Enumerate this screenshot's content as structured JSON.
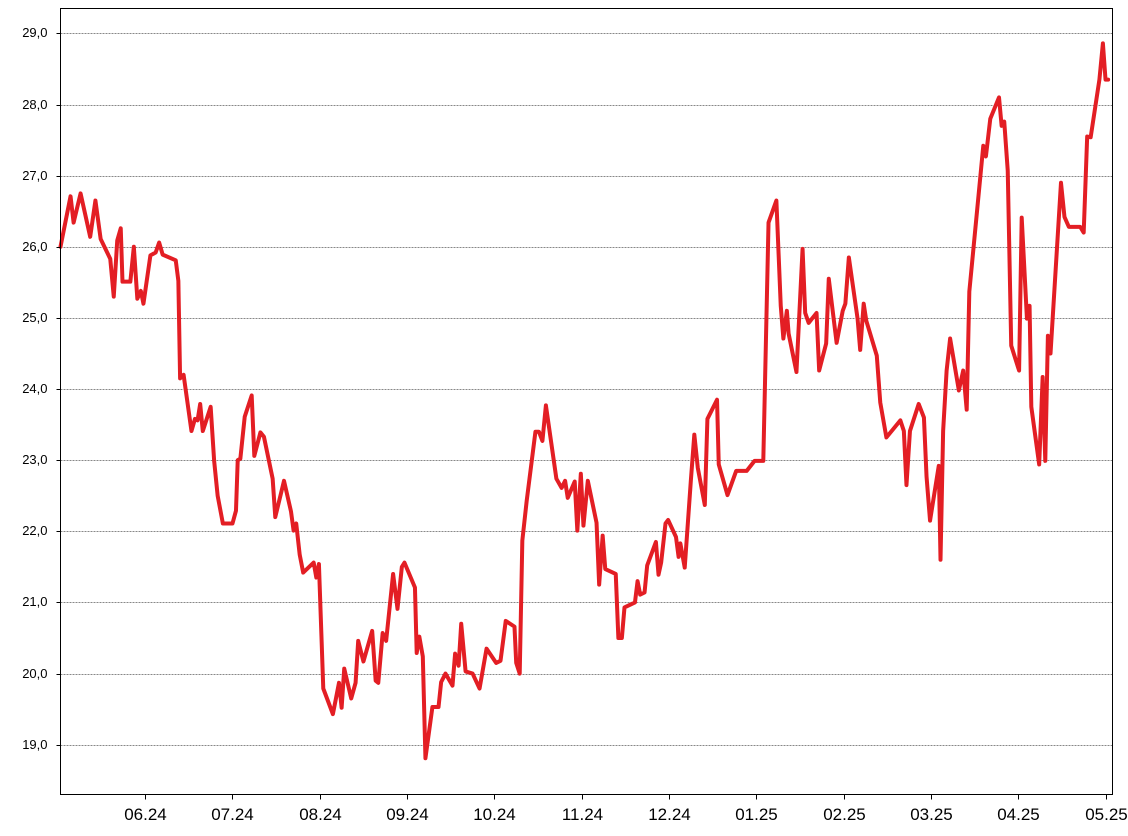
{
  "chart_data": {
    "type": "line",
    "x": [
      5.03,
      5.145,
      5.18,
      5.26,
      5.37,
      5.43,
      5.49,
      5.6,
      5.64,
      5.68,
      5.72,
      5.74,
      5.83,
      5.87,
      5.91,
      5.95,
      5.98,
      6.06,
      6.12,
      6.16,
      6.2,
      6.35,
      6.38,
      6.4,
      6.44,
      6.53,
      6.57,
      6.6,
      6.63,
      6.66,
      6.75,
      6.79,
      6.83,
      6.89,
      7.0,
      7.04,
      7.06,
      7.09,
      7.14,
      7.22,
      7.25,
      7.32,
      7.36,
      7.46,
      7.49,
      7.59,
      7.67,
      7.7,
      7.73,
      7.77,
      7.81,
      7.93,
      7.96,
      7.99,
      8.04,
      8.15,
      8.22,
      8.25,
      8.28,
      8.36,
      8.41,
      8.44,
      8.5,
      8.6,
      8.64,
      8.67,
      8.72,
      8.76,
      8.84,
      8.89,
      8.94,
      8.97,
      9.09,
      9.11,
      9.14,
      9.18,
      9.21,
      9.29,
      9.36,
      9.39,
      9.44,
      9.52,
      9.55,
      9.59,
      9.62,
      9.67,
      9.75,
      9.83,
      9.91,
      10.02,
      10.07,
      10.13,
      10.23,
      10.25,
      10.29,
      10.32,
      10.37,
      10.47,
      10.51,
      10.55,
      10.59,
      10.71,
      10.77,
      10.81,
      10.84,
      10.92,
      10.95,
      10.99,
      11.02,
      11.07,
      11.17,
      11.2,
      11.24,
      11.27,
      11.39,
      11.42,
      11.46,
      11.49,
      11.61,
      11.64,
      11.67,
      11.72,
      11.75,
      11.85,
      11.88,
      11.91,
      11.96,
      11.99,
      12.08,
      12.11,
      12.13,
      12.18,
      12.25,
      12.29,
      12.33,
      12.41,
      12.44,
      12.55,
      12.57,
      12.67,
      12.77,
      12.89,
      12.98,
      13.08,
      13.14,
      13.23,
      13.28,
      13.31,
      13.35,
      13.37,
      13.46,
      13.53,
      13.56,
      13.6,
      13.69,
      13.72,
      13.8,
      13.83,
      13.92,
      13.99,
      14.02,
      14.06,
      14.16,
      14.19,
      14.23,
      14.26,
      14.38,
      14.42,
      14.49,
      14.65,
      14.69,
      14.72,
      14.76,
      14.86,
      14.92,
      14.95,
      14.99,
      15.09,
      15.11,
      15.14,
      15.18,
      15.22,
      15.32,
      15.37,
      15.41,
      15.44,
      15.6,
      15.63,
      15.68,
      15.78,
      15.81,
      15.84,
      15.88,
      15.92,
      16.01,
      16.04,
      16.1,
      16.13,
      16.15,
      16.24,
      16.28,
      16.31,
      16.34,
      16.37,
      16.49,
      16.53,
      16.58,
      16.71,
      16.75,
      16.79,
      16.83,
      16.93,
      16.97,
      17.0,
      17.03
    ],
    "series": [
      {
        "color": "#e31e24",
        "values": [
          26.0,
          26.71,
          26.34,
          26.75,
          26.14,
          26.65,
          26.11,
          25.83,
          25.3,
          26.09,
          26.26,
          25.51,
          25.51,
          26.0,
          25.27,
          25.38,
          25.2,
          25.88,
          25.92,
          26.06,
          25.89,
          25.81,
          25.52,
          24.15,
          24.2,
          23.41,
          23.58,
          23.56,
          23.79,
          23.41,
          23.75,
          22.99,
          22.5,
          22.11,
          22.11,
          22.29,
          23.0,
          23.02,
          23.61,
          23.91,
          23.06,
          23.39,
          23.33,
          22.74,
          22.2,
          22.71,
          22.28,
          22.01,
          22.11,
          21.67,
          21.42,
          21.56,
          21.35,
          21.54,
          19.79,
          19.43,
          19.87,
          19.52,
          20.07,
          19.65,
          19.87,
          20.46,
          20.17,
          20.6,
          19.9,
          19.87,
          20.57,
          20.46,
          21.4,
          20.91,
          21.5,
          21.56,
          21.21,
          20.29,
          20.52,
          20.24,
          18.81,
          19.53,
          19.53,
          19.88,
          20.0,
          19.83,
          20.28,
          20.11,
          20.7,
          20.03,
          20.0,
          19.79,
          20.35,
          20.15,
          20.18,
          20.74,
          20.66,
          20.15,
          20.0,
          21.87,
          22.43,
          23.4,
          23.4,
          23.27,
          23.77,
          22.74,
          22.61,
          22.71,
          22.47,
          22.7,
          22.01,
          22.81,
          22.08,
          22.71,
          22.12,
          21.25,
          21.94,
          21.47,
          21.4,
          20.5,
          20.5,
          20.93,
          21.0,
          21.3,
          21.11,
          21.14,
          21.52,
          21.85,
          21.39,
          21.56,
          22.11,
          22.16,
          21.92,
          21.64,
          21.83,
          21.49,
          22.71,
          23.36,
          22.89,
          22.37,
          23.58,
          23.85,
          22.94,
          22.51,
          22.85,
          22.85,
          22.99,
          22.99,
          26.34,
          26.65,
          25.17,
          24.71,
          25.1,
          24.78,
          24.24,
          25.97,
          25.07,
          24.93,
          25.07,
          24.26,
          24.64,
          25.55,
          24.65,
          25.1,
          25.2,
          25.85,
          24.99,
          24.55,
          25.2,
          24.96,
          24.47,
          23.81,
          23.32,
          23.56,
          23.41,
          22.65,
          23.41,
          23.79,
          23.6,
          22.77,
          22.15,
          22.92,
          21.6,
          23.41,
          24.26,
          24.71,
          23.98,
          24.26,
          23.71,
          25.37,
          27.42,
          27.27,
          27.8,
          28.1,
          27.7,
          27.76,
          27.07,
          24.61,
          24.26,
          26.41,
          24.99,
          25.17,
          23.75,
          22.94,
          24.17,
          22.99,
          24.75,
          24.5,
          26.9,
          26.42,
          26.28,
          26.28,
          26.2,
          27.55,
          27.54,
          28.35,
          28.86,
          28.35,
          28.35
        ]
      }
    ],
    "xlim": [
      5.03,
      17.08
    ],
    "xticks": [
      {
        "value": 6,
        "label": "06.24"
      },
      {
        "value": 7,
        "label": "07.24"
      },
      {
        "value": 8,
        "label": "08.24"
      },
      {
        "value": 9,
        "label": "09.24"
      },
      {
        "value": 10,
        "label": "10.24"
      },
      {
        "value": 11,
        "label": "11.24"
      },
      {
        "value": 12,
        "label": "12.24"
      },
      {
        "value": 13,
        "label": "01.25"
      },
      {
        "value": 14,
        "label": "02.25"
      },
      {
        "value": 15,
        "label": "03.25"
      },
      {
        "value": 16,
        "label": "04.25"
      },
      {
        "value": 17,
        "label": "05.25"
      }
    ],
    "ylim": [
      18.3,
      29.35
    ],
    "yticks": [
      {
        "value": 19,
        "label": "19,0"
      },
      {
        "value": 20,
        "label": "20,0"
      },
      {
        "value": 21,
        "label": "21,0"
      },
      {
        "value": 22,
        "label": "22,0"
      },
      {
        "value": 23,
        "label": "23,0"
      },
      {
        "value": 24,
        "label": "24,0"
      },
      {
        "value": 25,
        "label": "25,0"
      },
      {
        "value": 26,
        "label": "26,0"
      },
      {
        "value": 27,
        "label": "27,0"
      },
      {
        "value": 28,
        "label": "28,0"
      },
      {
        "value": 29,
        "label": "29,0"
      }
    ],
    "grid": true
  }
}
